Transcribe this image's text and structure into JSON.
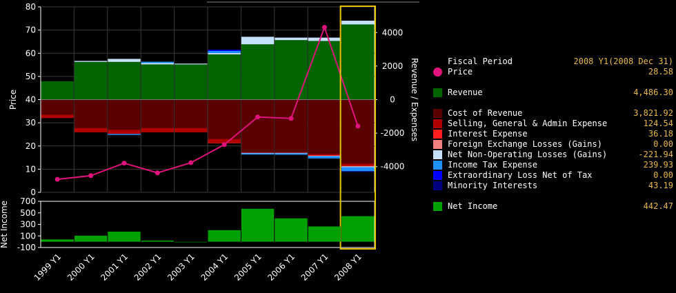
{
  "chart_data": [
    {
      "type": "bar",
      "panel": "main",
      "categories": [
        "1999 Y1",
        "2000 Y1",
        "2001 Y1",
        "2002 Y1",
        "2003 Y1",
        "2004 Y1",
        "2005 Y1",
        "2006 Y1",
        "2007 Y1",
        "2008 Y1"
      ],
      "left_axis": {
        "title": "Price",
        "ylim": [
          0,
          80
        ],
        "ticks": [
          0,
          10,
          20,
          30,
          40,
          50,
          60,
          70,
          80
        ]
      },
      "right_axis": {
        "title": "Revenue / Expenses",
        "ylim": [
          -5500,
          5500
        ],
        "ticks": [
          4000,
          2000,
          0,
          -2000,
          -4000
        ],
        "tick_labels": [
          "4000",
          "2000",
          "0",
          "-2000",
          "-4000"
        ]
      },
      "series": [
        {
          "name": "Revenue",
          "color": "#006400",
          "axis": "right",
          "values": [
            1100,
            2250,
            2250,
            2100,
            2100,
            2700,
            3300,
            3550,
            3500,
            4486.3
          ]
        },
        {
          "name": "Net Non-Operating Losses (Gains)",
          "color": "#c6e2fb",
          "axis": "right",
          "stack": "positive",
          "values": [
            0,
            60,
            180,
            80,
            50,
            80,
            450,
            150,
            200,
            221.94
          ]
        },
        {
          "name": "Income Tax Expense",
          "color": "#1e90ff",
          "axis": "right",
          "stack": "positive",
          "values": [
            0,
            0,
            0,
            80,
            0,
            120,
            0,
            0,
            0,
            0
          ]
        },
        {
          "name": "Extraordinary Loss Net of Tax",
          "color": "#0000ff",
          "axis": "right",
          "stack": "positive",
          "values": [
            0,
            0,
            0,
            0,
            0,
            70,
            0,
            0,
            0,
            0
          ]
        },
        {
          "name": "Cost of Revenue",
          "color": "#5a0000",
          "axis": "right",
          "values": [
            -900,
            -1700,
            -1800,
            -1700,
            -1700,
            -2350,
            -3150,
            -3150,
            -3250,
            -3821.92
          ]
        },
        {
          "name": "Selling, General & Admin Expense",
          "color": "#b00000",
          "axis": "right",
          "values": [
            -200,
            -250,
            -250,
            -250,
            -250,
            -220,
            -30,
            -30,
            -60,
            -124.54
          ]
        },
        {
          "name": "Interest Expense",
          "color": "#ff1e1e",
          "axis": "right",
          "values": [
            0,
            0,
            0,
            0,
            0,
            -30,
            0,
            0,
            -40,
            -36.18
          ]
        },
        {
          "name": "Foreign Exchange Losses (Gains)",
          "color": "#f08080",
          "axis": "right",
          "values": [
            0,
            0,
            0,
            0,
            0,
            0,
            0,
            0,
            0,
            0
          ]
        },
        {
          "name": "Net Non-Operating Losses (Gains)",
          "color": "#c6e2fb",
          "axis": "right",
          "stack": "negative",
          "values": [
            0,
            0,
            0,
            0,
            0,
            0,
            -30,
            -30,
            -30,
            -50
          ]
        },
        {
          "name": "Income Tax Expense",
          "color": "#1e90ff",
          "axis": "right",
          "stack": "negative",
          "values": [
            0,
            0,
            -60,
            0,
            0,
            0,
            -70,
            -80,
            -130,
            -239.93
          ]
        },
        {
          "name": "Minority Interests",
          "color": "#000080",
          "axis": "right",
          "values": [
            0,
            0,
            0,
            0,
            0,
            0,
            0,
            0,
            0,
            -43.19
          ]
        }
      ],
      "line": {
        "name": "Price",
        "color": "#e0137c",
        "axis": "left",
        "values": [
          5.6,
          7.2,
          12.6,
          8.4,
          12.8,
          20.6,
          32.5,
          31.9,
          71.2,
          28.58
        ]
      },
      "highlight_category": "2008 Y1",
      "highlight_color": "#e6c200"
    },
    {
      "type": "bar",
      "panel": "net_income",
      "title": "Net Income",
      "categories": [
        "1999 Y1",
        "2000 Y1",
        "2001 Y1",
        "2002 Y1",
        "2003 Y1",
        "2004 Y1",
        "2005 Y1",
        "2006 Y1",
        "2007 Y1",
        "2008 Y1"
      ],
      "ylim": [
        -100,
        700
      ],
      "ticks": [
        -100,
        100,
        300,
        500,
        700
      ],
      "series": [
        {
          "name": "Net Income",
          "color": "#00a000",
          "values": [
            40,
            105,
            175,
            20,
            -5,
            200,
            570,
            405,
            265,
            442.47
          ]
        }
      ]
    }
  ],
  "legend": {
    "header": {
      "label": "Fiscal Period",
      "value": "2008 Y1(2008 Dec 31)"
    },
    "items": [
      {
        "label": "Price",
        "value": "28.58",
        "color": "#e0137c",
        "marker": "dot",
        "row": 1
      },
      {
        "label": "Revenue",
        "value": "4,486.30",
        "color": "#006400",
        "marker": "square",
        "row": 3
      },
      {
        "label": "Cost of Revenue",
        "value": "3,821.92",
        "color": "#5a0000",
        "marker": "square",
        "row": 5
      },
      {
        "label": "Selling, General & Admin Expense",
        "value": "124.54",
        "color": "#b00000",
        "marker": "square",
        "row": 6
      },
      {
        "label": "Interest Expense",
        "value": "36.18",
        "color": "#ff1e1e",
        "marker": "square",
        "row": 7
      },
      {
        "label": "Foreign Exchange Losses (Gains)",
        "value": "0.00",
        "color": "#f08080",
        "marker": "square",
        "row": 8
      },
      {
        "label": "Net Non-Operating Losses (Gains)",
        "value": "-221.94",
        "color": "#c6e2fb",
        "marker": "square",
        "row": 9
      },
      {
        "label": "Income Tax Expense",
        "value": "239.93",
        "color": "#1e90ff",
        "marker": "square",
        "row": 10
      },
      {
        "label": "Extraordinary Loss Net of Tax",
        "value": "0.00",
        "color": "#0000ff",
        "marker": "square",
        "row": 11
      },
      {
        "label": "Minority Interests",
        "value": "43.19",
        "color": "#000080",
        "marker": "square",
        "row": 12
      },
      {
        "label": "Net Income",
        "value": "442.47",
        "color": "#00a000",
        "marker": "square",
        "row": 14
      }
    ]
  }
}
